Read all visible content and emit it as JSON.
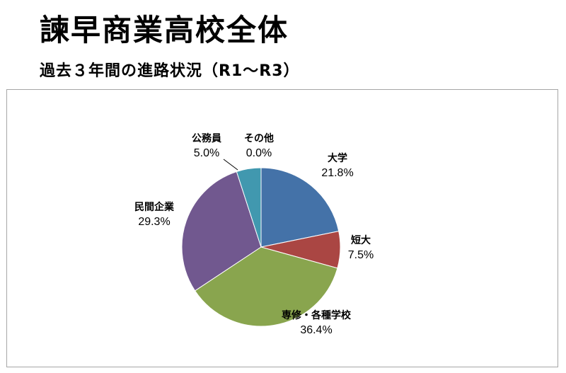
{
  "title": "諫早商業高校全体",
  "subtitle": "過去３年間の進路状況（R1～R3）",
  "chart_data": {
    "type": "pie",
    "slices": [
      {
        "label": "大学",
        "value": 21.8,
        "display": "21.8%",
        "color": "#4472a8"
      },
      {
        "label": "短大",
        "value": 7.5,
        "display": "7.5%",
        "color": "#aa4643"
      },
      {
        "label": "専修・各種学校",
        "value": 36.4,
        "display": "36.4%",
        "color": "#89a54e"
      },
      {
        "label": "民間企業",
        "value": 29.3,
        "display": "29.3%",
        "color": "#71588f"
      },
      {
        "label": "公務員",
        "value": 5.0,
        "display": "5.0%",
        "color": "#4198af"
      },
      {
        "label": "その他",
        "value": 0.0,
        "display": "0.0%",
        "color": "#db843d"
      }
    ],
    "start_angle": "12 o'clock",
    "direction": "clockwise"
  }
}
